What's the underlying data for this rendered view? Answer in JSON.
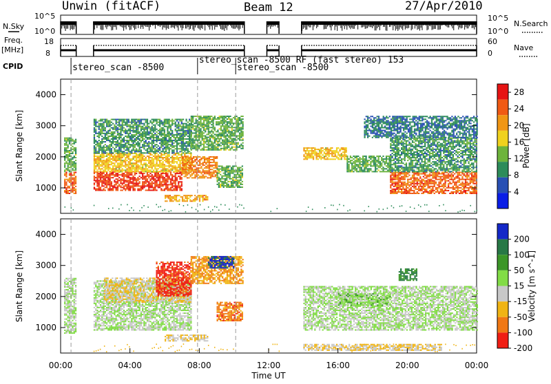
{
  "header": {
    "station": "Unwin (fitACF)",
    "beam": "Beam 12",
    "date": "27/Apr/2010"
  },
  "status_panels": {
    "nsky_label": "N.Sky",
    "nsky_ticks": [
      "10^0",
      "10^5"
    ],
    "nsearch_label": "N.Search",
    "freq_label_line1": "Freq.",
    "freq_label_line2": "[MHz]",
    "freq_ticks": [
      "8",
      "18"
    ],
    "nave_label": "Nave",
    "nave_ticks": [
      "0",
      "60"
    ],
    "cpid_label": "CPID",
    "cpid_entries": [
      {
        "name": "stereo_scan -8500",
        "start_hour": 0.6
      },
      {
        "name": "stereo_scan -8500 RF (fast stereo) 153",
        "start_hour": 7.9
      },
      {
        "name": "stereo_scan -8500",
        "start_hour": 10.1
      }
    ]
  },
  "x_axis": {
    "label": "Time UT",
    "ticks": [
      "00:00",
      "04:00",
      "08:00",
      "12:00",
      "16:00",
      "20:00",
      "00:00"
    ]
  },
  "power_panel": {
    "ylabel": "Slant Range [km]",
    "yticks": [
      "1000",
      "2000",
      "3000",
      "4000"
    ],
    "colorbar_label": "Power [dB]",
    "colorbar_ticks": [
      "4",
      "8",
      "12",
      "16",
      "20",
      "24",
      "28"
    ],
    "colors": [
      "#0a1ee6",
      "#2850b4",
      "#2d8c5a",
      "#6eb43c",
      "#f0d21e",
      "#f09614",
      "#f05a14",
      "#e61414"
    ]
  },
  "velocity_panel": {
    "ylabel": "Slant Range [km]",
    "yticks": [
      "1000",
      "2000",
      "3000",
      "4000"
    ],
    "colorbar_label": "Velocity [m s^-1]",
    "colorbar_ticks": [
      "200",
      "100",
      "50",
      "15",
      "-15",
      "-50",
      "-100",
      "-200"
    ],
    "colors": [
      "#1428c8",
      "#287846",
      "#3c9628",
      "#82dc46",
      "#c8c8c8",
      "#f0b414",
      "#f07814",
      "#f01e14"
    ]
  },
  "chart_data": [
    {
      "type": "heatmap",
      "title": "Power",
      "xlabel": "Time UT",
      "ylabel": "Slant Range [km]",
      "xlim": [
        0,
        24
      ],
      "ylim": [
        180,
        4500
      ],
      "colorbar": {
        "label": "Power [dB]",
        "range": [
          0,
          30
        ]
      },
      "no_data_intervals_hours": [
        [
          0.9,
          1.9
        ],
        [
          10.6,
          11.9
        ],
        [
          12.6,
          13.9
        ]
      ],
      "echo_regions": [
        {
          "t0": 0.2,
          "t1": 0.9,
          "r0": 800,
          "r1": 1500,
          "value": 24
        },
        {
          "t0": 0.2,
          "t1": 0.9,
          "r0": 1500,
          "r1": 2600,
          "value": 12
        },
        {
          "t0": 1.9,
          "t1": 7.0,
          "r0": 900,
          "r1": 1500,
          "value": 26
        },
        {
          "t0": 1.9,
          "t1": 7.5,
          "r0": 1500,
          "r1": 2100,
          "value": 18
        },
        {
          "t0": 1.9,
          "t1": 7.5,
          "r0": 2100,
          "r1": 3200,
          "value": 10
        },
        {
          "t0": 7.0,
          "t1": 9.0,
          "r0": 1300,
          "r1": 2000,
          "value": 22
        },
        {
          "t0": 7.5,
          "t1": 10.5,
          "r0": 2200,
          "r1": 3300,
          "value": 12
        },
        {
          "t0": 9.0,
          "t1": 10.5,
          "r0": 1000,
          "r1": 1700,
          "value": 12
        },
        {
          "t0": 6.0,
          "t1": 8.5,
          "r0": 550,
          "r1": 750,
          "value": 20
        },
        {
          "t0": 14.0,
          "t1": 16.5,
          "r0": 1900,
          "r1": 2300,
          "value": 18
        },
        {
          "t0": 16.5,
          "t1": 19.0,
          "r0": 1500,
          "r1": 2000,
          "value": 12
        },
        {
          "t0": 19.0,
          "t1": 24.0,
          "r0": 800,
          "r1": 1500,
          "value": 24
        },
        {
          "t0": 19.0,
          "t1": 24.0,
          "r0": 1500,
          "r1": 2600,
          "value": 10
        },
        {
          "t0": 17.5,
          "t1": 24.0,
          "r0": 2600,
          "r1": 3300,
          "value": 8
        }
      ]
    },
    {
      "type": "heatmap",
      "title": "Velocity",
      "xlabel": "Time UT",
      "ylabel": "Slant Range [km]",
      "xlim": [
        0,
        24
      ],
      "ylim": [
        180,
        4500
      ],
      "colorbar": {
        "label": "Velocity [m s^-1]",
        "range": [
          -250,
          250
        ]
      },
      "no_data_intervals_hours": [
        [
          0.9,
          1.9
        ],
        [
          10.6,
          11.9
        ],
        [
          12.6,
          13.9
        ]
      ],
      "echo_regions": [
        {
          "t0": 0.2,
          "t1": 0.9,
          "r0": 800,
          "r1": 2600,
          "value": 0
        },
        {
          "t0": 1.9,
          "t1": 7.5,
          "r0": 900,
          "r1": 2500,
          "value": 0
        },
        {
          "t0": 2.5,
          "t1": 7.5,
          "r0": 1800,
          "r1": 2600,
          "value": -60
        },
        {
          "t0": 5.5,
          "t1": 7.5,
          "r0": 2000,
          "r1": 3100,
          "value": -220
        },
        {
          "t0": 7.5,
          "t1": 10.5,
          "r0": 2400,
          "r1": 3300,
          "value": -120
        },
        {
          "t0": 8.5,
          "t1": 10.0,
          "r0": 2900,
          "r1": 3300,
          "value": 210
        },
        {
          "t0": 9.0,
          "t1": 10.5,
          "r0": 1200,
          "r1": 1800,
          "value": -150
        },
        {
          "t0": 6.0,
          "t1": 8.5,
          "r0": 550,
          "r1": 750,
          "value": -60
        },
        {
          "t0": 14.0,
          "t1": 24.0,
          "r0": 900,
          "r1": 2300,
          "value": 0
        },
        {
          "t0": 16.0,
          "t1": 19.0,
          "r0": 1700,
          "r1": 2100,
          "value": 30
        },
        {
          "t0": 14.0,
          "t1": 22.0,
          "r0": 250,
          "r1": 450,
          "value": -60
        },
        {
          "t0": 19.5,
          "t1": 20.5,
          "r0": 2500,
          "r1": 2900,
          "value": 120
        }
      ]
    }
  ]
}
